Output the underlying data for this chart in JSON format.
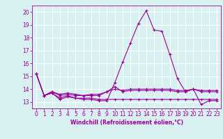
{
  "xlabel": "Windchill (Refroidissement éolien,°C)",
  "x_values": [
    0,
    1,
    2,
    3,
    4,
    5,
    6,
    7,
    8,
    9,
    10,
    11,
    12,
    13,
    14,
    15,
    16,
    17,
    18,
    19,
    20,
    21,
    22,
    23
  ],
  "line1": [
    15.2,
    13.5,
    13.7,
    13.2,
    13.4,
    13.3,
    13.2,
    13.2,
    13.1,
    13.1,
    14.5,
    16.1,
    17.6,
    19.1,
    20.1,
    18.6,
    18.5,
    16.7,
    14.8,
    13.8,
    14.0,
    12.8,
    13.1,
    13.1
  ],
  "line2": [
    15.2,
    13.5,
    13.7,
    13.3,
    13.5,
    13.3,
    13.3,
    13.3,
    13.2,
    13.2,
    13.2,
    13.2,
    13.2,
    13.2,
    13.2,
    13.2,
    13.2,
    13.2,
    13.2,
    13.2,
    13.2,
    13.2,
    13.2,
    13.2
  ],
  "line3": [
    15.2,
    13.5,
    13.8,
    13.5,
    13.6,
    13.5,
    13.5,
    13.5,
    13.5,
    13.8,
    14.2,
    13.8,
    13.9,
    13.9,
    13.9,
    13.9,
    13.9,
    13.9,
    13.8,
    13.8,
    14.0,
    13.8,
    13.8,
    13.8
  ],
  "line4": [
    15.2,
    13.5,
    13.8,
    13.6,
    13.7,
    13.6,
    13.5,
    13.6,
    13.6,
    13.8,
    14.0,
    13.9,
    14.0,
    14.0,
    14.0,
    14.0,
    14.0,
    14.0,
    13.9,
    13.9,
    14.0,
    13.9,
    13.9,
    13.9
  ],
  "line_color": "#990099",
  "bg_color": "#d8f0f0",
  "grid_color": "#ffffff",
  "ylim": [
    12.5,
    20.5
  ],
  "yticks": [
    13,
    14,
    15,
    16,
    17,
    18,
    19,
    20
  ],
  "marker": "+",
  "markersize": 3,
  "linewidth": 0.8,
  "tick_fontsize": 5.5,
  "xlabel_fontsize": 5.5
}
